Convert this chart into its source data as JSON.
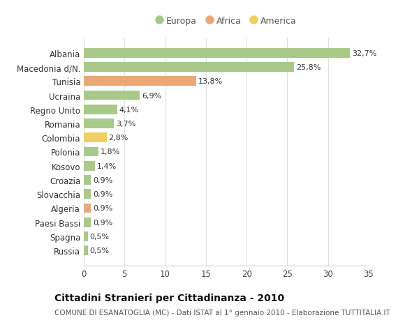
{
  "countries": [
    "Albania",
    "Macedonia d/N.",
    "Tunisia",
    "Ucraina",
    "Regno Unito",
    "Romania",
    "Colombia",
    "Polonia",
    "Kosovo",
    "Croazia",
    "Slovacchia",
    "Algeria",
    "Paesi Bassi",
    "Spagna",
    "Russia"
  ],
  "values": [
    32.7,
    25.8,
    13.8,
    6.9,
    4.1,
    3.7,
    2.8,
    1.8,
    1.4,
    0.9,
    0.9,
    0.9,
    0.9,
    0.5,
    0.5
  ],
  "labels": [
    "32,7%",
    "25,8%",
    "13,8%",
    "6,9%",
    "4,1%",
    "3,7%",
    "2,8%",
    "1,8%",
    "1,4%",
    "0,9%",
    "0,9%",
    "0,9%",
    "0,9%",
    "0,5%",
    "0,5%"
  ],
  "categories": [
    "Europa",
    "Europa",
    "Africa",
    "Europa",
    "Europa",
    "Europa",
    "America",
    "Europa",
    "Europa",
    "Europa",
    "Europa",
    "Africa",
    "Europa",
    "Europa",
    "Europa"
  ],
  "color_map": {
    "Europa": "#a8c98a",
    "Africa": "#e8a878",
    "America": "#f0d060"
  },
  "legend_order": [
    "Europa",
    "Africa",
    "America"
  ],
  "legend_colors": {
    "Europa": "#a8c98a",
    "Africa": "#e8a878",
    "America": "#f0d060"
  },
  "title": "Cittadini Stranieri per Cittadinanza - 2010",
  "subtitle": "COMUNE DI ESANATOGLIA (MC) - Dati ISTAT al 1° gennaio 2010 - Elaborazione TUTTITALIA.IT",
  "xlim": [
    0,
    35
  ],
  "xticks": [
    0,
    5,
    10,
    15,
    20,
    25,
    30,
    35
  ],
  "background_color": "#ffffff",
  "grid_color": "#e0e0e0",
  "bar_height": 0.68,
  "title_fontsize": 10,
  "subtitle_fontsize": 7.5,
  "label_fontsize": 8,
  "tick_fontsize": 8.5,
  "legend_fontsize": 9
}
